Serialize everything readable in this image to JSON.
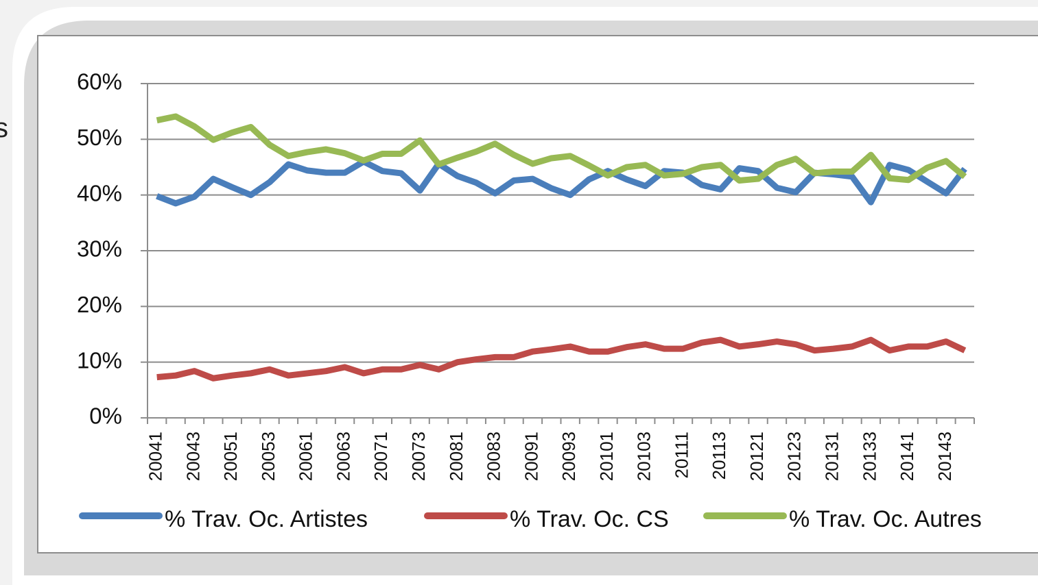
{
  "slide_fragment": "s",
  "chart_data": {
    "type": "line",
    "categories": [
      "20041",
      null,
      "20043",
      null,
      "20051",
      null,
      "20053",
      null,
      "20061",
      null,
      "20063",
      null,
      "20071",
      null,
      "20073",
      null,
      "20081",
      null,
      "20083",
      null,
      "20091",
      null,
      "20093",
      null,
      "20101",
      null,
      "20103",
      null,
      "20111",
      null,
      "20113",
      null,
      "20121",
      null,
      "20123",
      null,
      "20131",
      null,
      "20133",
      null,
      "20141",
      null,
      "20143",
      null
    ],
    "series": [
      {
        "name": "% Trav. Oc. Artistes",
        "color": "#4a7ebb",
        "values": [
          39.8,
          38.5,
          39.7,
          42.9,
          41.4,
          40.0,
          42.3,
          45.5,
          44.4,
          44.0,
          44.0,
          46.0,
          44.3,
          43.9,
          40.8,
          45.6,
          43.4,
          42.2,
          40.3,
          42.6,
          42.9,
          41.2,
          40.0,
          42.8,
          44.3,
          42.8,
          41.6,
          44.3,
          44.0,
          41.8,
          41.0,
          44.8,
          44.3,
          41.3,
          40.5,
          44.0,
          43.7,
          43.3,
          38.7,
          45.4,
          44.5,
          42.4,
          40.3,
          44.7
        ]
      },
      {
        "name": "% Trav. Oc. CS",
        "color": "#be4b48",
        "values": [
          7.3,
          7.6,
          8.4,
          7.1,
          7.6,
          8.0,
          8.7,
          7.6,
          8.0,
          8.4,
          9.1,
          8.0,
          8.7,
          8.7,
          9.5,
          8.7,
          10.0,
          10.5,
          10.9,
          10.9,
          11.9,
          12.3,
          12.8,
          11.9,
          11.9,
          12.7,
          13.2,
          12.4,
          12.4,
          13.5,
          14.0,
          12.8,
          13.2,
          13.7,
          13.2,
          12.1,
          12.4,
          12.8,
          14.0,
          12.1,
          12.8,
          12.8,
          13.7,
          12.1
        ]
      },
      {
        "name": "% Trav. Oc. Autres",
        "color": "#98b954",
        "values": [
          53.4,
          54.1,
          52.3,
          49.9,
          51.2,
          52.2,
          49.0,
          47.0,
          47.7,
          48.2,
          47.5,
          46.2,
          47.4,
          47.4,
          49.8,
          45.5,
          46.7,
          47.8,
          49.2,
          47.2,
          45.6,
          46.6,
          47.0,
          45.3,
          43.5,
          45.0,
          45.4,
          43.5,
          43.8,
          45.0,
          45.4,
          42.6,
          42.9,
          45.4,
          46.5,
          43.9,
          44.2,
          44.2,
          47.2,
          43.0,
          42.7,
          44.9,
          46.1,
          43.3
        ]
      }
    ],
    "ylim": [
      0,
      60
    ],
    "yticks": [
      {
        "value": 0,
        "label": "0%"
      },
      {
        "value": 10,
        "label": "10%"
      },
      {
        "value": 20,
        "label": "20%"
      },
      {
        "value": 30,
        "label": "30%"
      },
      {
        "value": 40,
        "label": "40%"
      },
      {
        "value": 50,
        "label": "50%"
      },
      {
        "value": 60,
        "label": "60%"
      }
    ],
    "grid": true,
    "legend": "bottom"
  }
}
